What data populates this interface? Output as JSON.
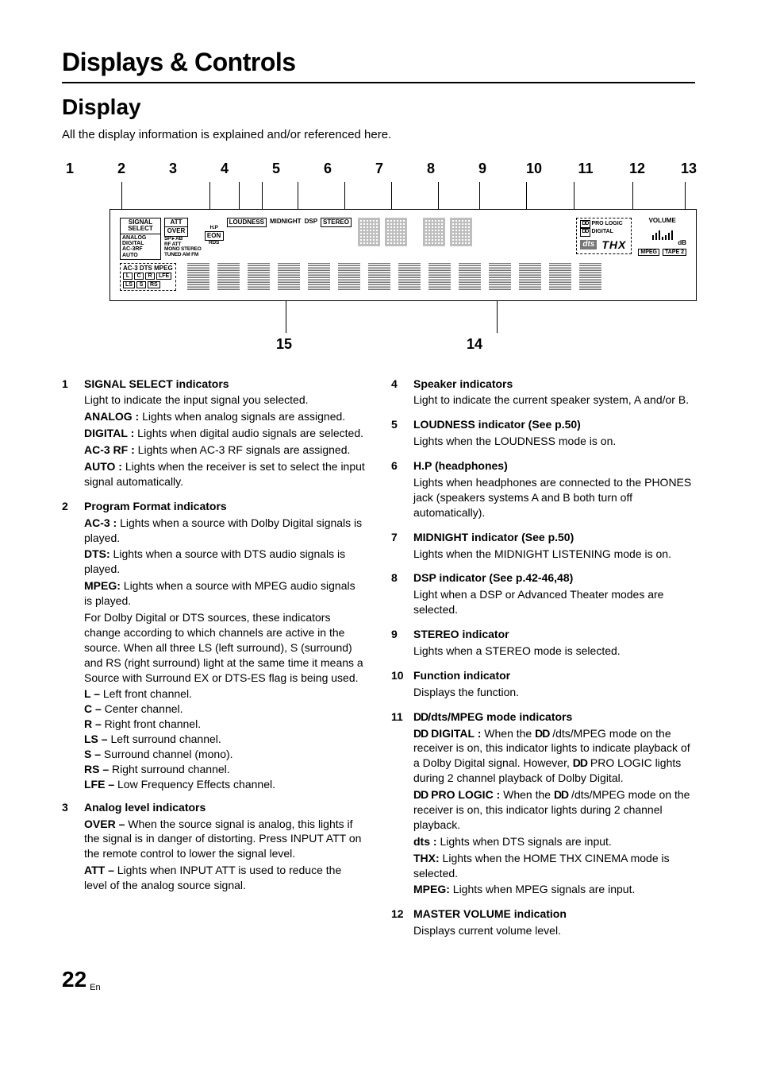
{
  "chapter_title": "Displays & Controls",
  "section_title": "Display",
  "intro": "All the display information is explained and/or referenced here.",
  "diagram": {
    "top_numbers": [
      "1",
      "2",
      "3",
      "4",
      "5",
      "6",
      "7",
      "8",
      "9",
      "10",
      "11",
      "12",
      "13"
    ],
    "top_leader_positions_pct": [
      2,
      17,
      22,
      26,
      32,
      40,
      48,
      56,
      63,
      71,
      79,
      89,
      98
    ],
    "bottom_numbers": [
      "15",
      "14"
    ],
    "bottom_leader_positions_pct": [
      30,
      66
    ],
    "panel": {
      "signal_select_label": "SIGNAL SELECT",
      "signal_list": [
        "ANALOG",
        "DIGITAL",
        "AC-3RF",
        "AUTO"
      ],
      "att_label": "ATT",
      "over_label": "OVER",
      "hp_label": "H.P",
      "sp_label": "SP ▸ AB",
      "eon_label": "EON",
      "rfatt_label": "RF ATT",
      "rds_label": "RDS",
      "mono_stereo_label": "MONO STEREO",
      "tuned_label": "TUNED AM FM",
      "loudness_label": "LOUDNESS",
      "midnight_label": "MIDNIGHT",
      "dsp_label": "DSP",
      "stereo_label": "STEREO",
      "prologic_label": "PRO LOGIC",
      "digital_label": "DIGITAL",
      "dts_label": "dts",
      "thx_label": "THX",
      "volume_label": "VOLUME",
      "db_label": "dB",
      "mpeg_label": "MPEG",
      "tape2_label": "TAPE 2",
      "format_row_label": "AC-3 DTS  MPEG",
      "channels_row1": [
        "L",
        "C",
        "R",
        "LFE"
      ],
      "channels_row2": [
        "LS",
        "S",
        "RS"
      ]
    }
  },
  "left_items": [
    {
      "num": "1",
      "head": "SIGNAL SELECT indicators",
      "lead": "Light to indicate the input signal you selected.",
      "subs": [
        {
          "b": "ANALOG :",
          "t": " Lights when analog signals are assigned."
        },
        {
          "b": "DIGITAL :",
          "t": " Lights when digital audio signals are selected."
        },
        {
          "b": "AC-3 RF :",
          "t": " Lights when AC-3 RF signals are assigned."
        },
        {
          "b": "AUTO :",
          "t": " Lights when the receiver is set to select the input signal automatically."
        }
      ]
    },
    {
      "num": "2",
      "head": "Program Format indicators",
      "subs": [
        {
          "b": "AC-3 :",
          "t": " Lights when a source with Dolby Digital signals is played."
        },
        {
          "b": "DTS:",
          "t": " Lights when a source with DTS audio signals is played."
        },
        {
          "b": "MPEG:",
          "t": " Lights when a source with MPEG audio signals is played."
        }
      ],
      "tail": "For Dolby Digital or DTS sources, these indicators change according to which channels are active in the source. When all three LS (left surround), S (surround) and RS (right surround) light at the same time it means a Source with Surround EX or DTS-ES flag is being used.",
      "ch_defs": [
        {
          "b": "L –",
          "t": " Left front channel."
        },
        {
          "b": "C –",
          "t": " Center channel."
        },
        {
          "b": "R –",
          "t": " Right front channel."
        },
        {
          "b": "LS –",
          "t": " Left surround channel."
        },
        {
          "b": "S –",
          "t": " Surround channel (mono)."
        },
        {
          "b": "RS –",
          "t": " Right surround channel."
        },
        {
          "b": "LFE –",
          "t": " Low Frequency Effects channel."
        }
      ]
    },
    {
      "num": "3",
      "head": "Analog level indicators",
      "subs": [
        {
          "b": "OVER –",
          "t": " When the source signal is analog, this lights if the signal is in danger of distorting. Press INPUT ATT on the remote control to lower the signal level."
        },
        {
          "b": "ATT –",
          "t": " Lights when INPUT ATT is used to reduce the level of the analog source signal."
        }
      ]
    }
  ],
  "right_items": [
    {
      "num": "4",
      "head": "Speaker indicators",
      "lead": "Light to indicate the current speaker system, A and/or B."
    },
    {
      "num": "5",
      "head": "LOUDNESS indicator (See p.50)",
      "lead": "Lights when the LOUDNESS mode is on."
    },
    {
      "num": "6",
      "head": "H.P (headphones)",
      "lead": "Lights when headphones are connected to the PHONES jack (speakers systems A and B both turn off automatically)."
    },
    {
      "num": "7",
      "head": "MIDNIGHT indicator (See p.50)",
      "lead": "Lights when the MIDNIGHT LISTENING mode is on."
    },
    {
      "num": "8",
      "head": "DSP indicator (See p.42-46,48)",
      "lead": "Light when a DSP or Advanced Theater modes are selected."
    },
    {
      "num": "9",
      "head": "STEREO indicator",
      "lead": "Lights when a STEREO mode is selected."
    },
    {
      "num": "10",
      "head": "Function indicator",
      "lead": "Displays the function."
    },
    {
      "num": "11",
      "head": "DD/dts/MPEG mode indicators",
      "dd_head": true,
      "subs": [
        {
          "b": "DD DIGITAL :",
          "dd": true,
          "t": " When the DD /dts/MPEG mode on the receiver is on, this indicator lights to indicate playback of a Dolby Digital signal. However, DD PRO LOGIC lights during 2 channel playback of Dolby Digital."
        },
        {
          "b": "DD PRO LOGIC :",
          "dd": true,
          "t": " When the DD /dts/MPEG mode on the receiver is on, this indicator lights during 2 channel playback."
        },
        {
          "b": "dts :",
          "t": " Lights when DTS signals are input."
        },
        {
          "b": "THX:",
          "t": " Lights when the HOME THX CINEMA mode is selected."
        },
        {
          "b": "MPEG:",
          "t": " Lights when MPEG signals are input."
        }
      ]
    },
    {
      "num": "12",
      "head": "MASTER VOLUME indication",
      "lead": "Displays current volume level."
    }
  ],
  "page_number": "22",
  "page_lang": "En"
}
